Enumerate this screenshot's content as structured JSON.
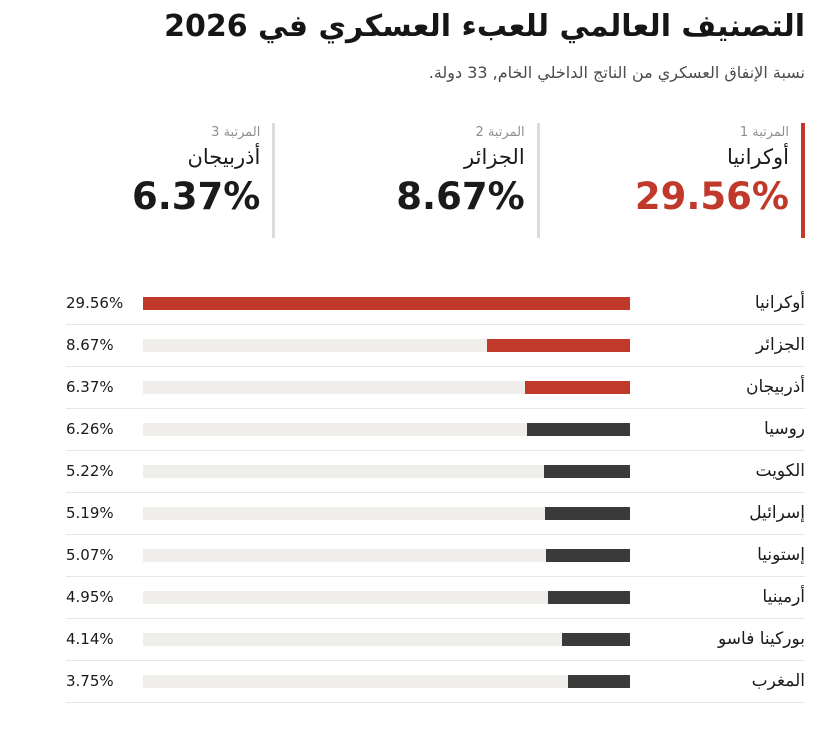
{
  "header": {
    "title": "التصنيف العالمي للعبء العسكري في 2026",
    "subtitle": "نسبة الإنفاق العسكري من الناتج الداخلي الخام, 33 دولة."
  },
  "colors": {
    "accent_red": "#c0392b",
    "bar_dark": "#3a3a3a",
    "bar_track": "#f0eeea"
  },
  "top_ranks": [
    {
      "rank_label": "المرتبة 1",
      "country": "أوكرانيا",
      "value": "29.56%",
      "highlight": true
    },
    {
      "rank_label": "المرتبة 2",
      "country": "الجزائر",
      "value": "8.67%",
      "highlight": false
    },
    {
      "rank_label": "المرتبة 3",
      "country": "أذربيجان",
      "value": "6.37%",
      "highlight": false
    }
  ],
  "chart_data": {
    "type": "bar",
    "orientation": "horizontal",
    "direction": "rtl",
    "title": "التصنيف العالمي للعبء العسكري في 2026",
    "subtitle": "نسبة الإنفاق العسكري من الناتج الداخلي الخام, 33 دولة.",
    "categories": [
      "أوكرانيا",
      "الجزائر",
      "أذربيجان",
      "روسيا",
      "الكويت",
      "إسرائيل",
      "إستونيا",
      "أرمينيا",
      "بوركينا فاسو",
      "المغرب"
    ],
    "values": [
      29.56,
      8.67,
      6.37,
      6.26,
      5.22,
      5.19,
      5.07,
      4.95,
      4.14,
      3.75
    ],
    "value_labels": [
      "29.56%",
      "8.67%",
      "6.37%",
      "6.26%",
      "5.22%",
      "5.19%",
      "5.07%",
      "4.95%",
      "4.14%",
      "3.75%"
    ],
    "unit": "%",
    "xlim": [
      0,
      29.56
    ],
    "highlighted_count": 3,
    "grid": false,
    "legend": false
  }
}
